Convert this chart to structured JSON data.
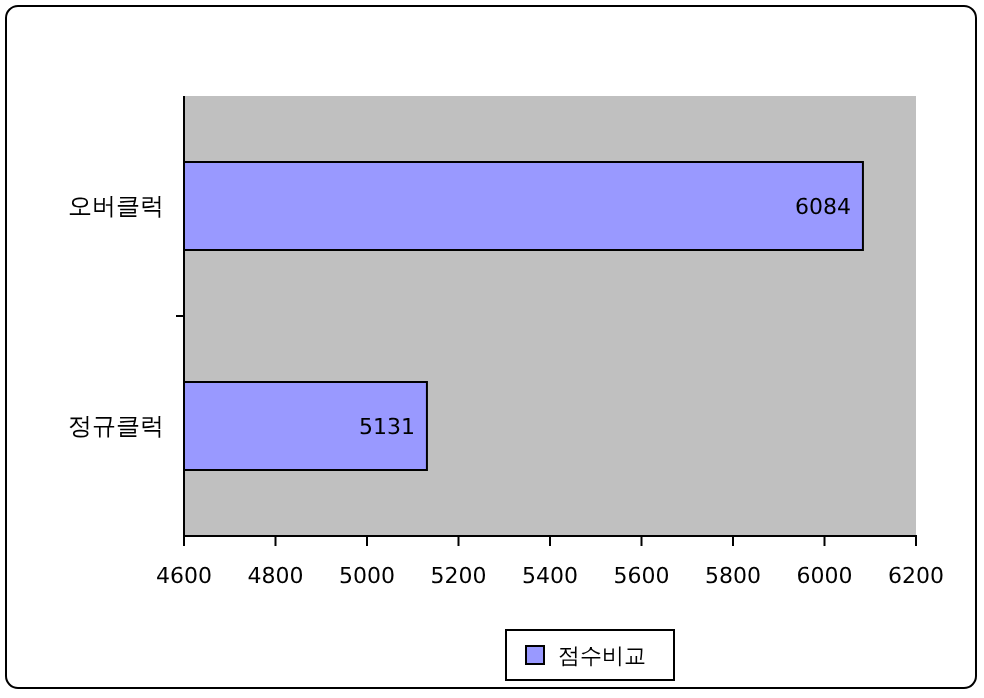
{
  "chart_data": {
    "type": "bar",
    "orientation": "horizontal",
    "categories": [
      "오버클럭",
      "정규클럭"
    ],
    "series": [
      {
        "name": "점수비교",
        "color": "#9999ff",
        "values": [
          6084,
          5131
        ]
      }
    ],
    "xlim": [
      4600,
      6200
    ],
    "xticks": [
      4600,
      4800,
      5000,
      5200,
      5400,
      5600,
      5800,
      6000,
      6200
    ],
    "data_labels": true,
    "legend": "bottom",
    "grid": false
  }
}
